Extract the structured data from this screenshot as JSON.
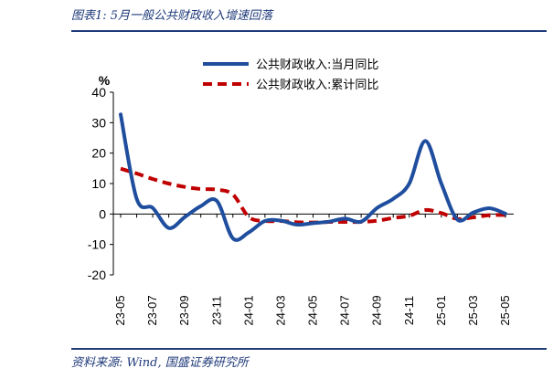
{
  "title": "图表1: 5月一般公共财政收入增速回落",
  "source": "资料来源: Wind, 国盛证券研究所",
  "chart_data": {
    "type": "line",
    "title": "图表1: 5月一般公共财政收入增速回落",
    "ylabel": "%",
    "xlabel": "",
    "ylim": [
      -20,
      40
    ],
    "yticks": [
      -20,
      -10,
      0,
      10,
      20,
      30,
      40
    ],
    "grid": false,
    "legend_position": "top",
    "x": [
      "23-05",
      "23-06",
      "23-07",
      "23-08",
      "23-09",
      "23-10",
      "23-11",
      "23-12",
      "24-01",
      "24-02",
      "24-03",
      "24-04",
      "24-05",
      "24-06",
      "24-07",
      "24-08",
      "24-09",
      "24-10",
      "24-11",
      "24-12",
      "25-01",
      "25-02",
      "25-03",
      "25-04",
      "25-05"
    ],
    "xtick_labels": [
      "23-05",
      "23-07",
      "23-09",
      "23-11",
      "24-01",
      "24-03",
      "24-05",
      "24-07",
      "24-09",
      "24-11",
      "25-01",
      "25-03",
      "25-05"
    ],
    "series": [
      {
        "name": "公共财政收入:当月同比",
        "color": "#1f4e9e",
        "style": "solid",
        "values": [
          32.7,
          5.0,
          2.0,
          -4.6,
          -1.0,
          2.6,
          4.3,
          -8.0,
          -6.0,
          -2.3,
          -2.2,
          -3.5,
          -3.0,
          -2.5,
          -1.5,
          -2.5,
          2.0,
          5.0,
          10.0,
          24.0,
          10.0,
          -1.8,
          0.5,
          1.9,
          0.1
        ]
      },
      {
        "name": "公共财政收入:累计同比",
        "color": "#c00000",
        "style": "dashed",
        "values": [
          14.9,
          13.3,
          11.5,
          10.0,
          8.9,
          8.2,
          8.0,
          6.4,
          -1.0,
          -2.3,
          -2.3,
          -2.7,
          -2.8,
          -2.6,
          -2.6,
          -2.6,
          -2.2,
          -1.3,
          -0.6,
          1.3,
          0.3,
          -1.6,
          -1.1,
          -0.4,
          -0.3
        ]
      }
    ]
  }
}
